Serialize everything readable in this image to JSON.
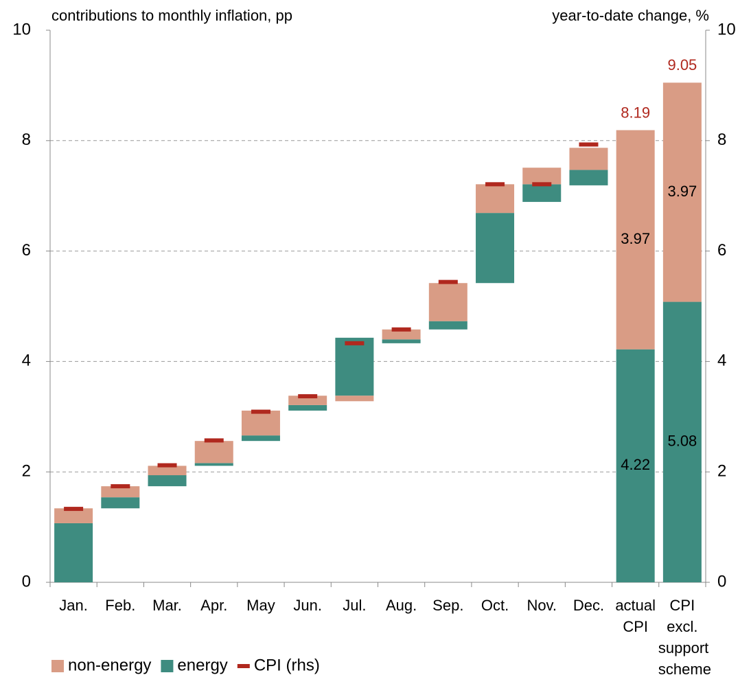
{
  "chart_data": {
    "type": "waterfall",
    "y_label": "contributions to monthly inflation, pp",
    "y2_label": "year-to-date change, %",
    "categories": [
      "Jan.",
      "Feb.",
      "Mar.",
      "Apr.",
      "May",
      "Jun.",
      "Jul.",
      "Aug.",
      "Sep.",
      "Oct.",
      "Nov.",
      "Dec.",
      "actual CPI",
      "CPI excl. support scheme"
    ],
    "series": [
      {
        "name": "non-energy",
        "color": "#d99c85",
        "values": [
          0.27,
          0.2,
          0.17,
          0.4,
          0.45,
          0.17,
          -0.1,
          0.18,
          0.69,
          0.52,
          0.3,
          0.4,
          3.97,
          3.97
        ]
      },
      {
        "name": "energy",
        "color": "#3e8c80",
        "values": [
          1.07,
          0.2,
          0.2,
          0.05,
          0.1,
          0.1,
          1.05,
          0.07,
          0.15,
          1.27,
          -0.32,
          0.28,
          4.22,
          5.08
        ]
      },
      {
        "name": "CPI (rhs)",
        "color": "#b0281e",
        "axis": "y2",
        "values": [
          1.33,
          1.74,
          2.12,
          2.57,
          3.09,
          3.37,
          4.33,
          4.58,
          5.44,
          7.21,
          7.21,
          7.93,
          null,
          null
        ]
      }
    ],
    "totals": [
      null,
      null,
      null,
      null,
      null,
      null,
      null,
      null,
      null,
      null,
      null,
      null,
      8.19,
      9.05
    ],
    "totals_color": "#b0281e",
    "ylim": [
      0,
      10
    ],
    "yticks": [
      0,
      2,
      4,
      6,
      8,
      10
    ],
    "y2lim": [
      0,
      10
    ],
    "y2ticks": [
      0,
      2,
      4,
      6,
      8,
      10
    ],
    "grid": true,
    "legend": "bottom-left"
  }
}
